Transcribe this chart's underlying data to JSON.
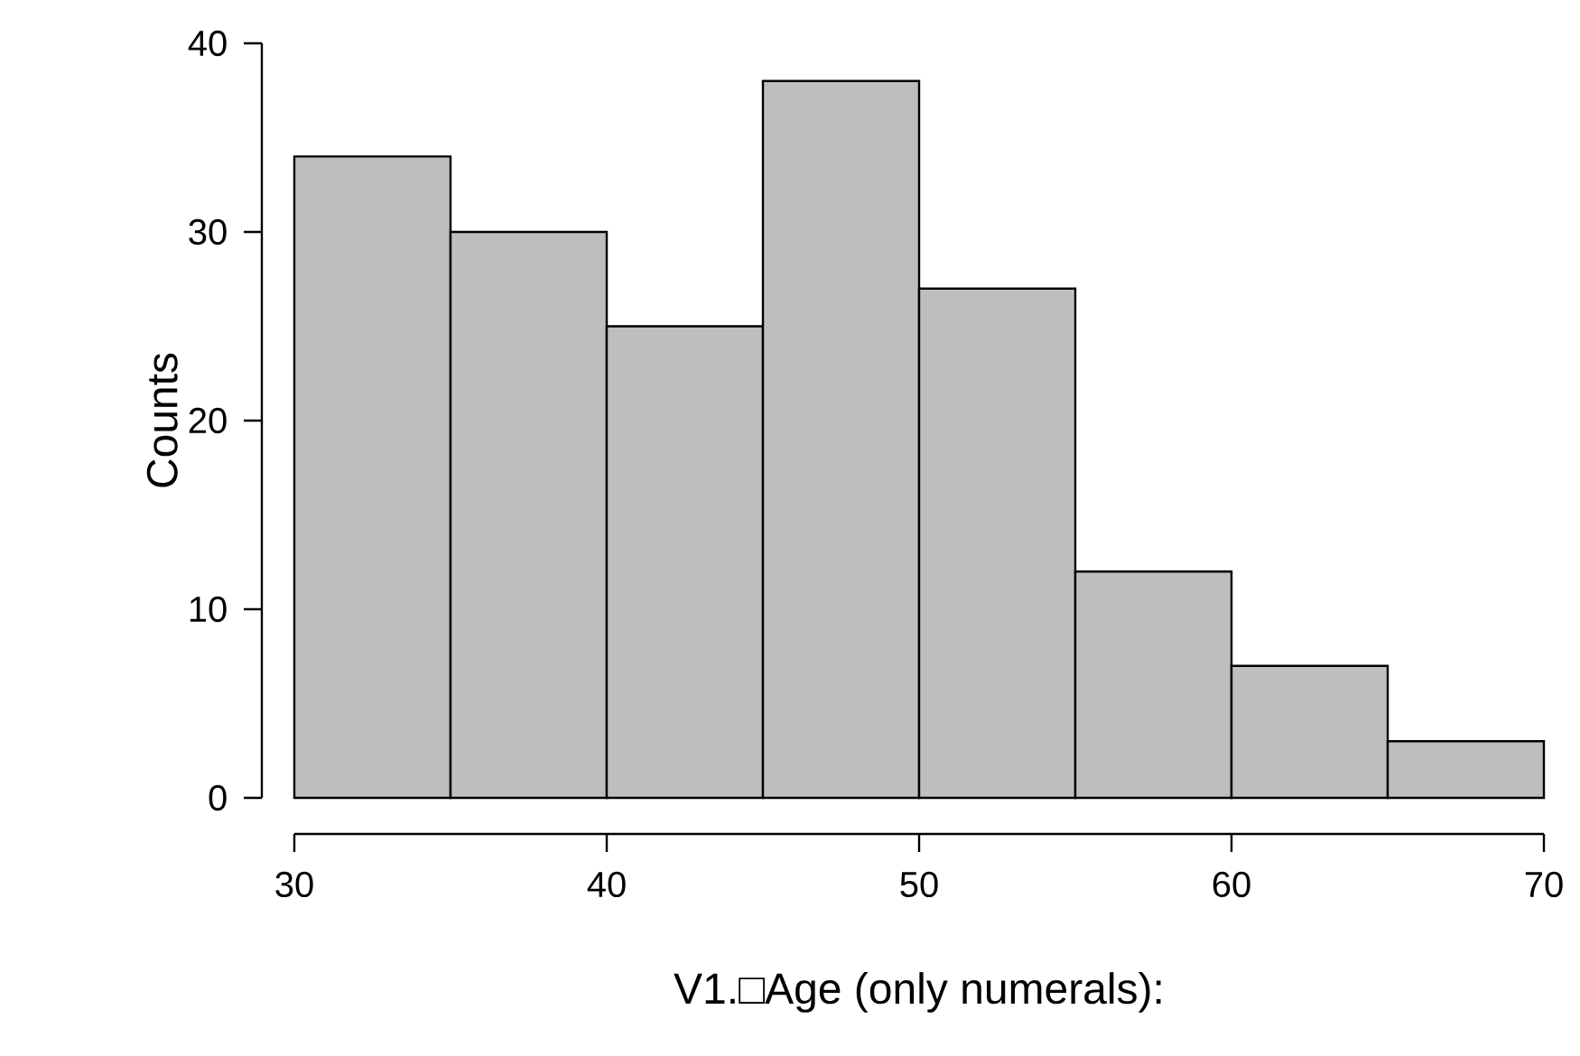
{
  "chart_data": {
    "type": "histogram",
    "xlabel": "V1.□Age (only numerals):",
    "ylabel": "Counts",
    "bins": [
      30,
      35,
      40,
      45,
      50,
      55,
      60,
      65,
      70
    ],
    "values": [
      34,
      30,
      25,
      38,
      27,
      12,
      7,
      3
    ],
    "color": "#bebebe",
    "xlim": [
      30,
      70
    ],
    "ylim": [
      0,
      40
    ],
    "xticks": [
      30,
      40,
      50,
      60,
      70
    ],
    "yticks": [
      0,
      10,
      20,
      30,
      40
    ]
  }
}
